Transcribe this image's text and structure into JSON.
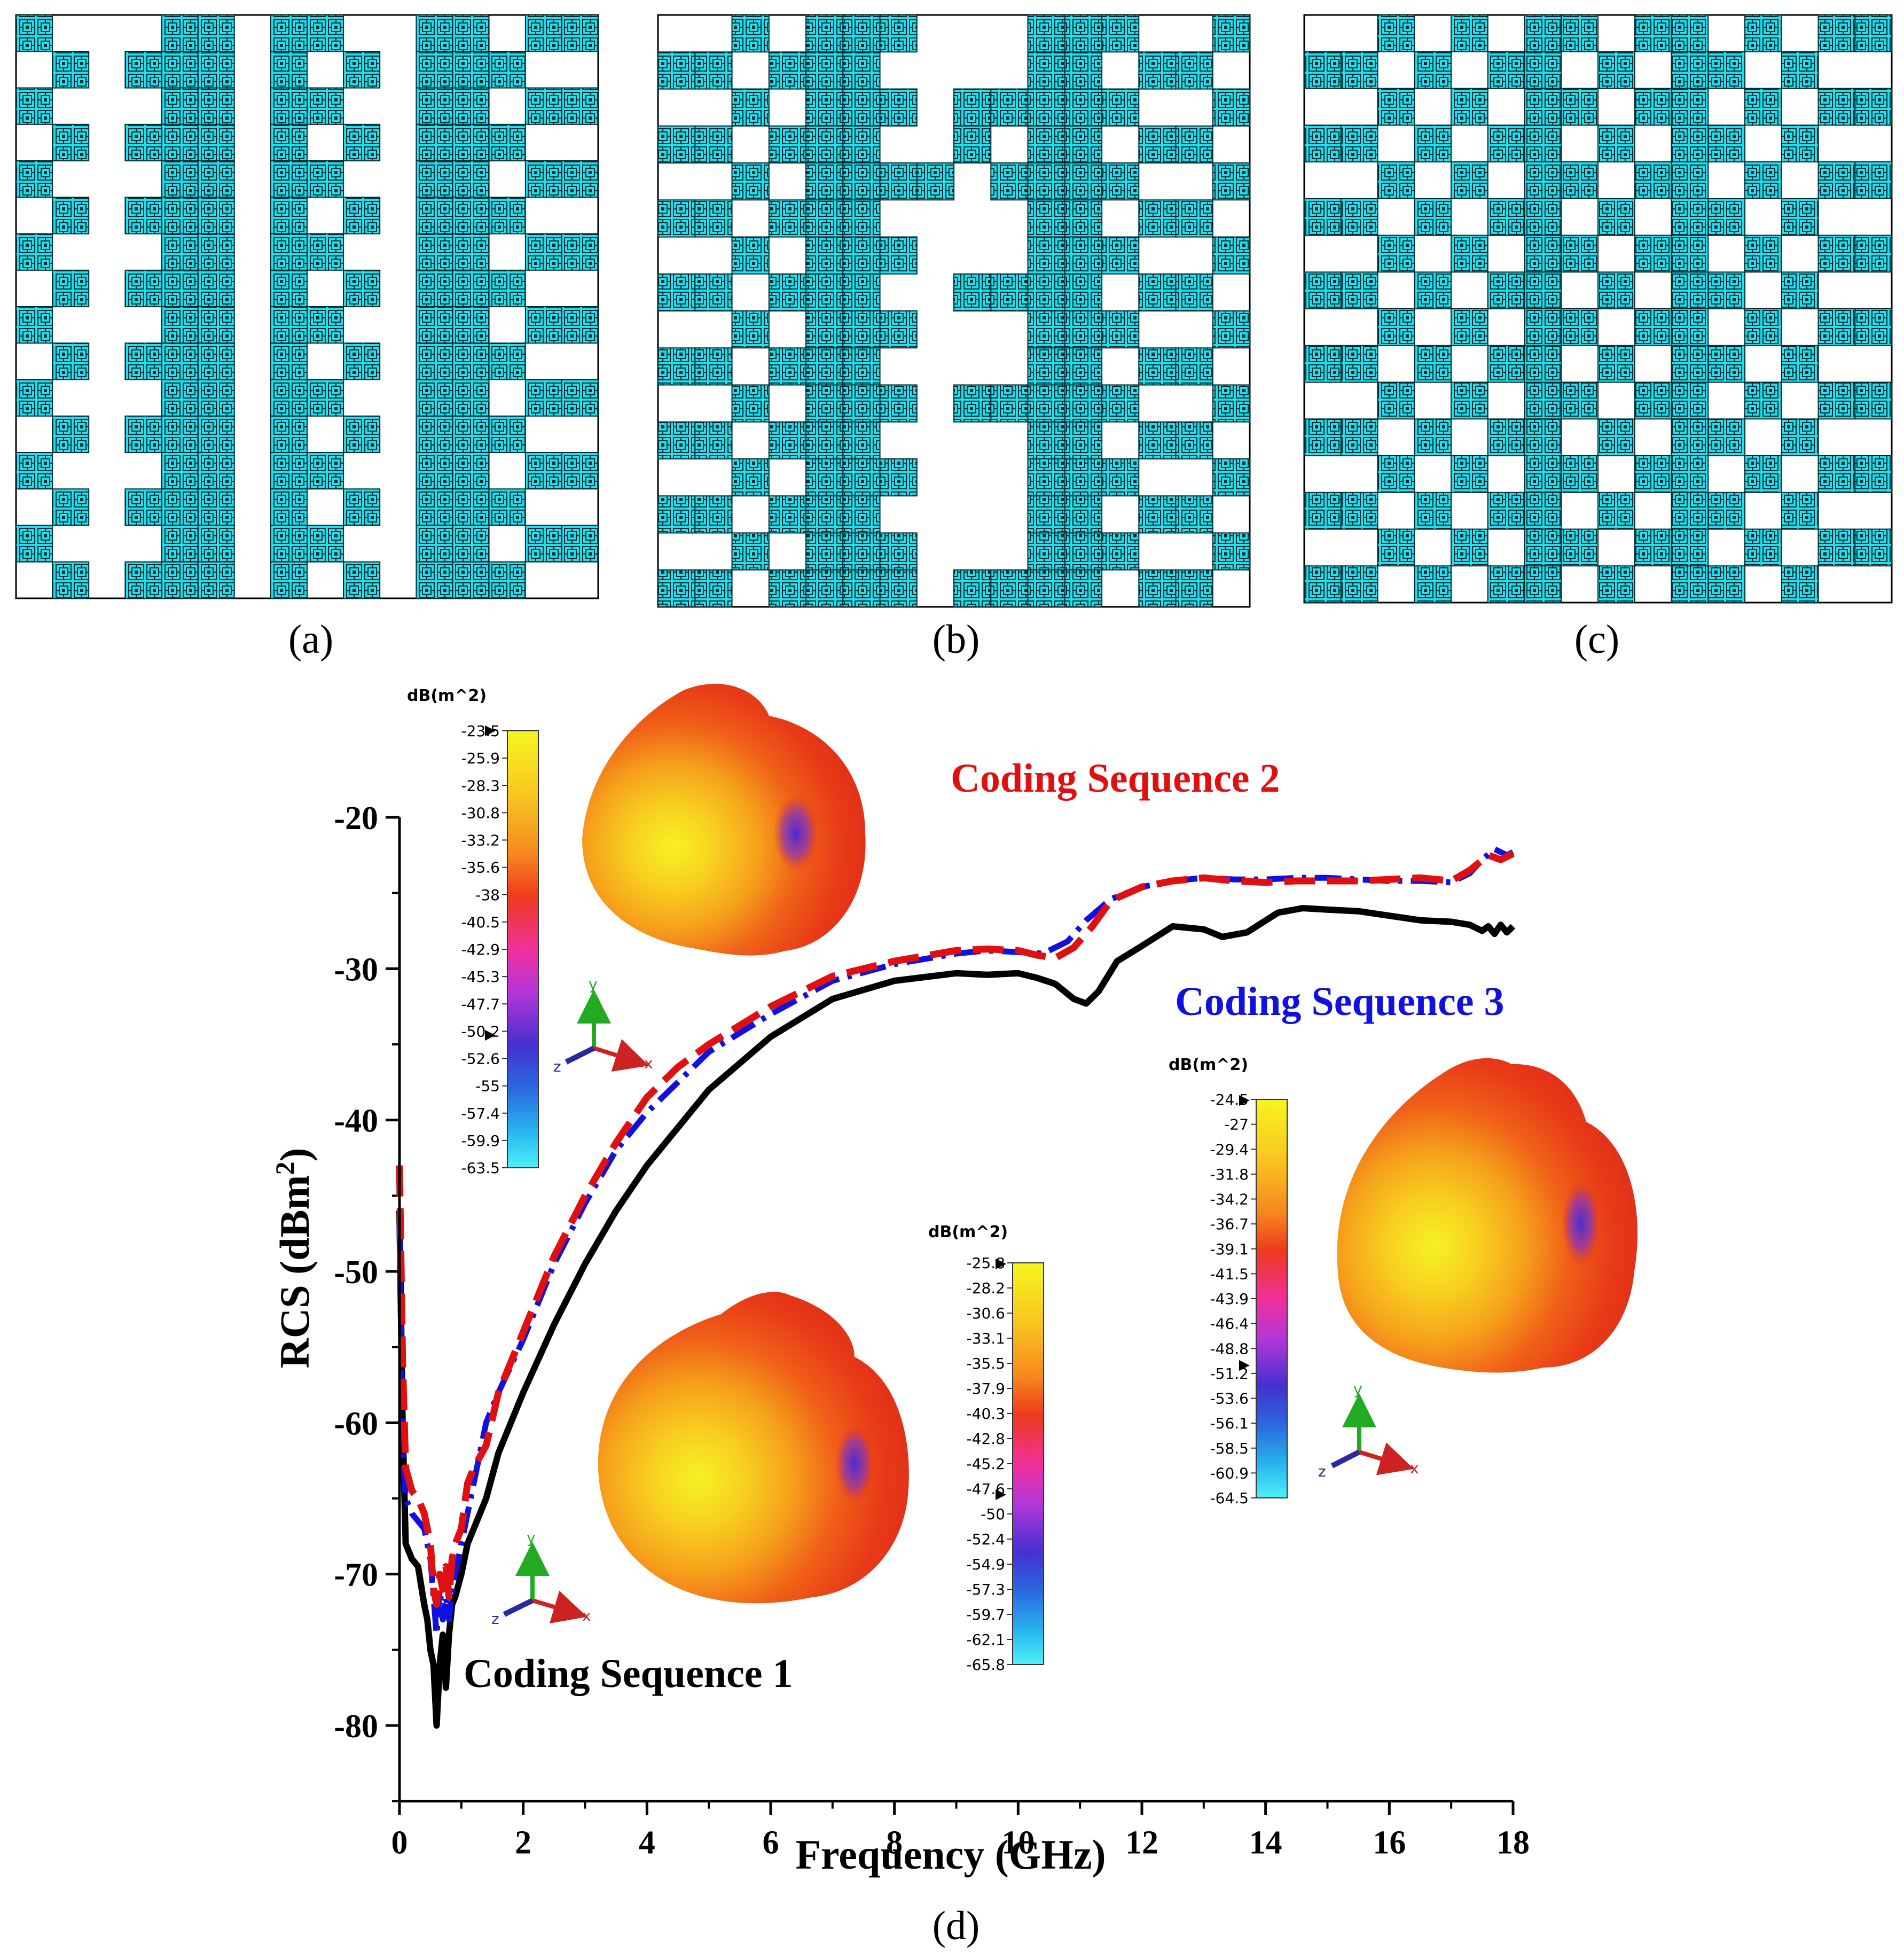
{
  "panels": [
    {
      "label": "(a)",
      "sequence": "1",
      "pattern": [
        "1000110110011011",
        "0101110101011100",
        "1000110110011011",
        "0101110101011100",
        "1000110110011011",
        "0101110101011100",
        "1000110110011011",
        "0101110101011100",
        "1000110110011011",
        "0101110101011100",
        "1000110110011011",
        "0101110101011100",
        "1000110110011011",
        "0101110101011100",
        "1000110110011011",
        "0101110101011100"
      ]
    },
    {
      "label": "(b)",
      "sequence": "2",
      "pattern": [
        "0010111000111001",
        "1101110000110110",
        "0010111011111001",
        "1101110010110110",
        "0010111101111001",
        "1101110000110110",
        "0010111000111001",
        "1101110011110110",
        "0010111000111001",
        "1101110000110110",
        "0010111011111001",
        "1101110000110110",
        "0010111000111001",
        "1101110000110110",
        "0010111000111001",
        "1101111011110110"
      ]
    },
    {
      "label": "(c)",
      "sequence": "3",
      "pattern": [
        "0010101101101011",
        "1101011010110100",
        "0010101101101011",
        "1101011010110100",
        "0010101101101011",
        "1101011010110100",
        "0010101101101011",
        "1101011010110100",
        "0010101101101011",
        "1101011010110100",
        "0010101101101011",
        "1101011010110100",
        "0010101101101011",
        "1101011010110100",
        "0010101101101011",
        "1101011010110100"
      ]
    }
  ],
  "colors": {
    "cell_fill": "#1ee0ee",
    "cell_line": "#0a2a30",
    "seq1": "#000000",
    "seq2": "#e01010",
    "seq3": "#1010e0",
    "axis": "#000000"
  },
  "chart_data": {
    "type": "line",
    "panel_label": "(d)",
    "xlabel": "Frequency (GHz)",
    "ylabel": "RCS (dBm2)",
    "ylabel_main": "RCS (dBm",
    "ylabel_sup": "2",
    "ylabel_close": ")",
    "xlim": [
      0,
      18
    ],
    "ylim": [
      -85,
      -20
    ],
    "xticks": [
      0,
      2,
      4,
      6,
      8,
      10,
      12,
      14,
      16,
      18
    ],
    "yticks": [
      -20,
      -30,
      -40,
      -50,
      -60,
      -70,
      -80
    ],
    "xtick_labels": [
      "0",
      "2",
      "4",
      "6",
      "8",
      "10",
      "12",
      "14",
      "16",
      "18"
    ],
    "ytick_labels": [
      "-20",
      "-30",
      "-40",
      "-50",
      "-60",
      "-70",
      "-80"
    ],
    "series": [
      {
        "name": "Coding Sequence 1",
        "style": "solid",
        "x": [
          0.0,
          0.05,
          0.1,
          0.2,
          0.3,
          0.4,
          0.45,
          0.5,
          0.55,
          0.6,
          0.65,
          0.7,
          0.75,
          0.8,
          0.85,
          0.9,
          1.0,
          1.1,
          1.2,
          1.4,
          1.6,
          2.0,
          2.5,
          3.0,
          3.5,
          4.0,
          4.5,
          5.0,
          6.0,
          7.0,
          8.0,
          9.0,
          9.5,
          10.0,
          10.3,
          10.6,
          10.9,
          11.1,
          11.3,
          11.6,
          12.0,
          12.5,
          13.0,
          13.3,
          13.7,
          14.2,
          14.6,
          15.0,
          15.5,
          16.0,
          16.5,
          17.0,
          17.3,
          17.5,
          17.6,
          17.7,
          17.8,
          17.9,
          18.0
        ],
        "y": [
          -46,
          -60,
          -68,
          -69,
          -69.5,
          -72,
          -73,
          -75,
          -76,
          -80,
          -76,
          -74,
          -77.5,
          -74,
          -72,
          -71.5,
          -70,
          -68,
          -67,
          -65,
          -62,
          -58,
          -53.5,
          -49.5,
          -46,
          -43,
          -40.5,
          -38,
          -34.5,
          -32,
          -30.8,
          -30.3,
          -30.4,
          -30.3,
          -30.6,
          -31,
          -32,
          -32.3,
          -31.5,
          -29.5,
          -28.5,
          -27.2,
          -27.4,
          -27.9,
          -27.6,
          -26.3,
          -26.0,
          -26.1,
          -26.2,
          -26.5,
          -26.8,
          -26.9,
          -27.1,
          -27.5,
          -27.2,
          -27.7,
          -27.1,
          -27.6,
          -27.2
        ]
      },
      {
        "name": "Coding Sequence 2",
        "style": "dashed",
        "x": [
          0.0,
          0.05,
          0.1,
          0.2,
          0.3,
          0.4,
          0.5,
          0.55,
          0.6,
          0.65,
          0.7,
          0.75,
          0.8,
          0.85,
          0.9,
          1.0,
          1.1,
          1.2,
          1.4,
          1.6,
          2.0,
          2.5,
          3.0,
          3.5,
          4.0,
          4.5,
          5.0,
          6.0,
          7.0,
          8.0,
          9.0,
          9.5,
          10.0,
          10.3,
          10.6,
          10.9,
          11.2,
          11.5,
          12.0,
          12.5,
          13.0,
          13.5,
          14.0,
          14.5,
          15.0,
          15.5,
          16.0,
          16.5,
          17.0,
          17.3,
          17.6,
          17.8,
          18.0
        ],
        "y": [
          -43,
          -56,
          -63,
          -64.5,
          -65,
          -66,
          -68,
          -71,
          -72,
          -70,
          -71,
          -69.5,
          -71.5,
          -69,
          -68,
          -67,
          -64,
          -63,
          -61.5,
          -58,
          -54,
          -49,
          -45,
          -41.5,
          -38.5,
          -36.5,
          -35,
          -32.5,
          -30.5,
          -29.5,
          -28.8,
          -28.7,
          -28.8,
          -29.1,
          -29.3,
          -28.6,
          -27.2,
          -25.5,
          -24.6,
          -24.2,
          -24.0,
          -24.2,
          -24.3,
          -24.2,
          -24.2,
          -24.2,
          -24.1,
          -24.0,
          -24.2,
          -23.5,
          -22.5,
          -22.8,
          -22.4
        ]
      },
      {
        "name": "Coding Sequence 3",
        "style": "dashdot",
        "x": [
          0.0,
          0.05,
          0.1,
          0.2,
          0.3,
          0.4,
          0.5,
          0.55,
          0.6,
          0.65,
          0.7,
          0.75,
          0.8,
          0.85,
          0.9,
          1.0,
          1.1,
          1.2,
          1.4,
          1.6,
          2.0,
          2.5,
          3.0,
          3.5,
          4.0,
          4.5,
          5.0,
          6.0,
          7.0,
          8.0,
          9.0,
          9.5,
          10.0,
          10.4,
          10.8,
          11.1,
          11.5,
          12.0,
          12.5,
          13.0,
          13.5,
          14.0,
          14.5,
          15.0,
          15.5,
          16.0,
          16.5,
          17.0,
          17.3,
          17.5,
          17.7,
          17.9,
          18.0
        ],
        "y": [
          -47,
          -62,
          -65,
          -66,
          -66.5,
          -67,
          -69,
          -71.5,
          -74,
          -71,
          -73,
          -71.5,
          -73,
          -71,
          -70,
          -68,
          -66,
          -64,
          -60,
          -58,
          -54.5,
          -49.5,
          -45.5,
          -42,
          -39.5,
          -37.5,
          -35.5,
          -33,
          -30.8,
          -29.7,
          -29.0,
          -28.8,
          -28.9,
          -29.0,
          -28.2,
          -26.8,
          -25.4,
          -24.6,
          -24.2,
          -24.0,
          -24.1,
          -24.1,
          -24.0,
          -24.0,
          -24.1,
          -24.2,
          -24.2,
          -24.3,
          -23.7,
          -22.8,
          -22.1,
          -22.5,
          -22.3
        ]
      }
    ],
    "annotations": [
      {
        "text": "Coding Sequence 1",
        "color": "#000000"
      },
      {
        "text": "Coding Sequence 2",
        "color": "#e01010"
      },
      {
        "text": "Coding Sequence 3",
        "color": "#1010e0"
      }
    ]
  },
  "colorbars": [
    {
      "unit": "dB(m^2)",
      "ticks": [
        "-23.5",
        "-25.9",
        "-28.3",
        "-30.8",
        "-33.2",
        "-35.6",
        "-38",
        "-40.5",
        "-42.9",
        "-45.3",
        "-47.7",
        "-50.2",
        "-52.6",
        "-55",
        "-57.4",
        "-59.9",
        "-63.5"
      ]
    },
    {
      "unit": "dB(m^2)",
      "ticks": [
        "-24.5",
        "-27",
        "-29.4",
        "-31.8",
        "-34.2",
        "-36.7",
        "-39.1",
        "-41.5",
        "-43.9",
        "-46.4",
        "-48.8",
        "-51.2",
        "-53.6",
        "-56.1",
        "-58.5",
        "-60.9",
        "-64.5"
      ]
    },
    {
      "unit": "dB(m^2)",
      "ticks": [
        "-25.8",
        "-28.2",
        "-30.6",
        "-33.1",
        "-35.5",
        "-37.9",
        "-40.3",
        "-42.8",
        "-45.2",
        "-47.6",
        "-50",
        "-52.4",
        "-54.9",
        "-57.3",
        "-59.7",
        "-62.1",
        "-65.8"
      ]
    }
  ],
  "axes_triad": {
    "x": "x",
    "y": "y",
    "z": "z"
  }
}
